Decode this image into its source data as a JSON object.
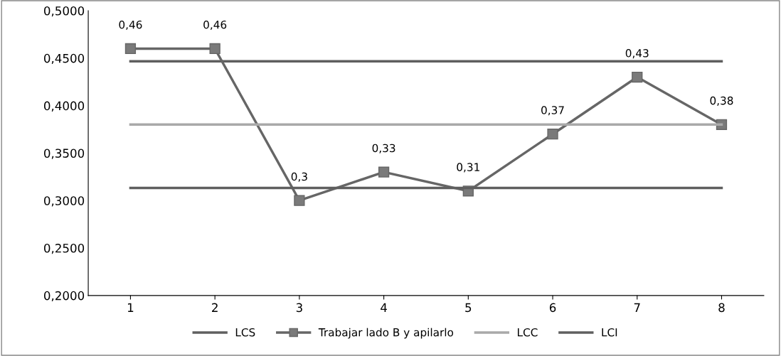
{
  "chart_data": {
    "type": "line",
    "categories": [
      "1",
      "2",
      "3",
      "4",
      "5",
      "6",
      "7",
      "8"
    ],
    "series": [
      {
        "name": "LCS",
        "color": "#5f5f5f",
        "marker": "none",
        "values": [
          0.4467,
          0.4467,
          0.4467,
          0.4467,
          0.4467,
          0.4467,
          0.4467,
          0.4467
        ]
      },
      {
        "name": "Trabajar lado B y apilarlo",
        "color": "#666666",
        "marker": "square",
        "values": [
          0.46,
          0.46,
          0.3,
          0.33,
          0.31,
          0.37,
          0.43,
          0.38
        ],
        "value_labels": [
          "0,46",
          "0,46",
          "0,3",
          "0,33",
          "0,31",
          "0,37",
          "0,43",
          "0,38"
        ]
      },
      {
        "name": "LCC",
        "color": "#a9a9a9",
        "marker": "none",
        "values": [
          0.38,
          0.38,
          0.38,
          0.38,
          0.38,
          0.38,
          0.38,
          0.38
        ]
      },
      {
        "name": "LCI",
        "color": "#5f5f5f",
        "marker": "none",
        "values": [
          0.3133,
          0.3133,
          0.3133,
          0.3133,
          0.3133,
          0.3133,
          0.3133,
          0.3133
        ]
      }
    ],
    "ylim": [
      0.2,
      0.5
    ],
    "yticks": [
      {
        "value": 0.2,
        "label": "0,2000"
      },
      {
        "value": 0.25,
        "label": "0,2500"
      },
      {
        "value": 0.3,
        "label": "0,3000"
      },
      {
        "value": 0.35,
        "label": "0,3500"
      },
      {
        "value": 0.4,
        "label": "0,4000"
      },
      {
        "value": 0.45,
        "label": "0,4500"
      },
      {
        "value": 0.5,
        "label": "0,5000"
      }
    ],
    "grid": false,
    "legend": "bottom"
  }
}
